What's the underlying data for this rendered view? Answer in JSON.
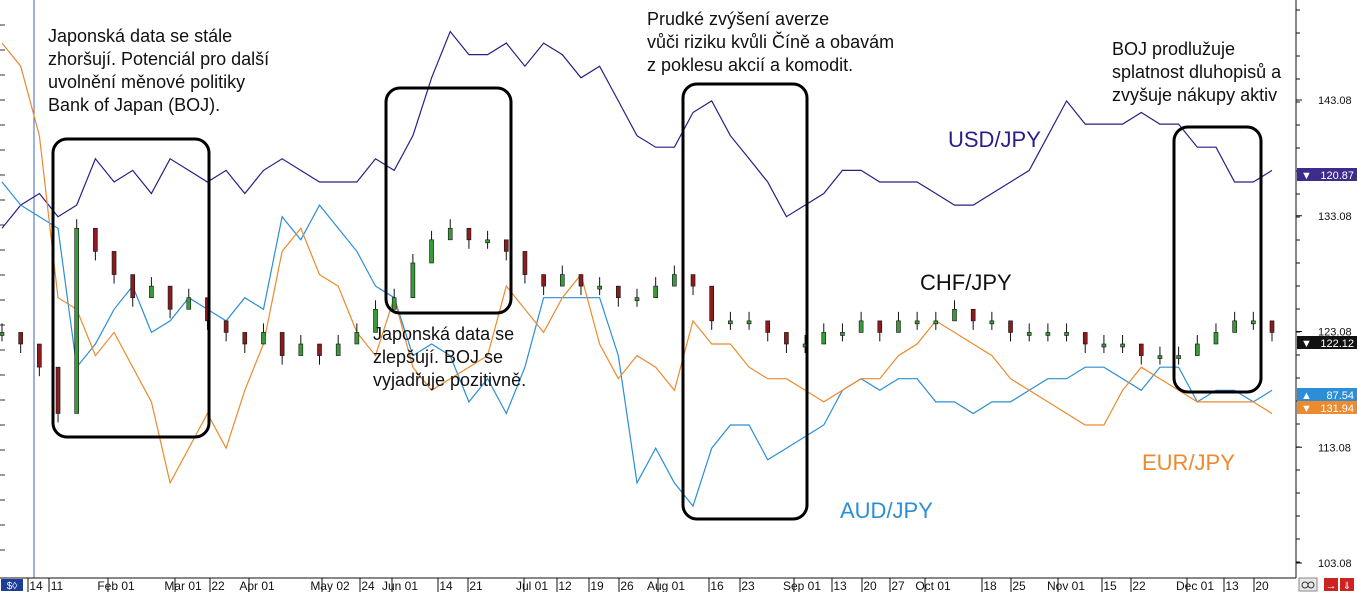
{
  "chart_data": {
    "type": "line",
    "ylim": [
      103.08,
      150
    ],
    "yticks": [
      143.08,
      133.08,
      123.08,
      113.08,
      103.08
    ],
    "xticks": [
      "14",
      "11",
      "Feb 01",
      "Mar 01",
      "22",
      "Apr 01",
      "May 02",
      "24",
      "Jun 01",
      "14",
      "21",
      "Jul 01",
      "12",
      "19",
      "26",
      "Aug 01",
      "16",
      "23",
      "Sep 01",
      "13",
      "20",
      "27",
      "Oct 01",
      "18",
      "25",
      "Nov 01",
      "15",
      "22",
      "Dec 01",
      "13",
      "20"
    ],
    "series": [
      {
        "name": "USD/JPY",
        "color": "#2b1d86",
        "last_label": "120.87",
        "last_tag_color": "#3d2c8d",
        "values": [
          132,
          134,
          135,
          133,
          134,
          138,
          136,
          137,
          135,
          138,
          137,
          136,
          137,
          135,
          137,
          138,
          137,
          136,
          136,
          136,
          138,
          137,
          140,
          145,
          149,
          147,
          147,
          148,
          146,
          148,
          147,
          145,
          146,
          143,
          140,
          139,
          139,
          142,
          143,
          140,
          138,
          136,
          133,
          134,
          135,
          137,
          137,
          136,
          136,
          136,
          135,
          134,
          134,
          135,
          136,
          137,
          140,
          143,
          141,
          141,
          141,
          142,
          141,
          141,
          139,
          139,
          136,
          136,
          137
        ]
      },
      {
        "name": "AUD/JPY",
        "color": "#2c8ed6",
        "last_label": "87.54",
        "last_tag_color": "#2c8ed6",
        "values": [
          136,
          134,
          133,
          132,
          120,
          122,
          125,
          127,
          123,
          124,
          126,
          125,
          124,
          126,
          125,
          133,
          131,
          134,
          132,
          130,
          127,
          126,
          121,
          122,
          121,
          117,
          119,
          116,
          120,
          126,
          126,
          126,
          126,
          121,
          110,
          113,
          110,
          108,
          113,
          115,
          115,
          112,
          113,
          114,
          115,
          118,
          119,
          118,
          119,
          119,
          117,
          117,
          116,
          117,
          117,
          118,
          119,
          119,
          120,
          120,
          119,
          118,
          120,
          120,
          117,
          118,
          118,
          117,
          118
        ]
      },
      {
        "name": "EUR/JPY",
        "color": "#ec8a2e",
        "last_label": "131.94",
        "last_tag_color": "#ec8a2e",
        "values": [
          148,
          146,
          140,
          126,
          125,
          121,
          123,
          120,
          117,
          110,
          113,
          116,
          113,
          118,
          122,
          130,
          132,
          128,
          127,
          123,
          121,
          126,
          120,
          118,
          119,
          120,
          121,
          127,
          125,
          123,
          126,
          128,
          122,
          119,
          121,
          120,
          118,
          124,
          122,
          122,
          120,
          119,
          119,
          118,
          117,
          118,
          119,
          119,
          121,
          122,
          124,
          123,
          122,
          121,
          119,
          118,
          117,
          116,
          115,
          115,
          118,
          120,
          119,
          118,
          117,
          117,
          117,
          117,
          116
        ]
      },
      {
        "name": "CHF/JPY",
        "color": "#111111",
        "last_label": "122.12",
        "last_tag_color": "#111111",
        "values": [
          123,
          122,
          120,
          116,
          132,
          130,
          128,
          126,
          127,
          125,
          126,
          124,
          123,
          122,
          123,
          121,
          122,
          121,
          122,
          123,
          125,
          126,
          129,
          131,
          132,
          131,
          131,
          130,
          128,
          127,
          128,
          127,
          127,
          126,
          126,
          127,
          128,
          127,
          124,
          124,
          124,
          123,
          122,
          122,
          123,
          123,
          124,
          123,
          124,
          124,
          124,
          125,
          124,
          124,
          123,
          123,
          123,
          123,
          122,
          122,
          122,
          121,
          121,
          121,
          122,
          123,
          124,
          124,
          123
        ]
      }
    ],
    "annotations": [
      {
        "text": [
          "Japonská data se stále",
          "zhoršují. Potenciál pro další",
          "uvolnění měnové politiky",
          "Bank of Japan (BOJ)."
        ]
      },
      {
        "text": [
          "Japonská data se",
          "zlepšují. BOJ se",
          "vyjadřuje pozitivně."
        ]
      },
      {
        "text": [
          "Prudké zvýšení averze",
          "vůči riziku kvůli Číně a obavám",
          "z poklesu akcií a komodit."
        ]
      },
      {
        "text": [
          "BOJ prodlužuje",
          "splatnost dluhopisů a",
          "zvyšuje nákupy aktiv"
        ]
      }
    ]
  }
}
